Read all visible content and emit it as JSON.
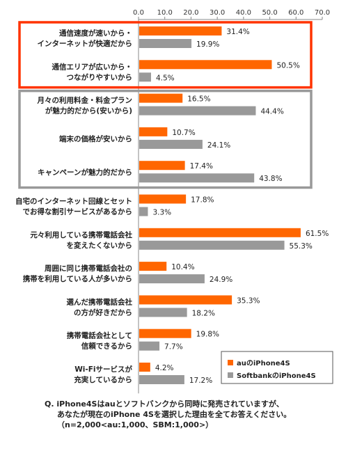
{
  "chart_data": {
    "type": "bar",
    "orientation": "horizontal",
    "xlim": [
      0,
      70
    ],
    "ticks": [
      "0.0",
      "10.0",
      "20.0",
      "30.0",
      "40.0",
      "50.0",
      "60.0",
      "70.0"
    ],
    "categories": [
      [
        "通信速度が速いから・",
        "インターネットが快適だから"
      ],
      [
        "通信エリアが広いから・",
        "つながりやすいから"
      ],
      [
        "月々の利用料金・料金プラン",
        "が魅力的だから(安いから)"
      ],
      [
        "端末の価格が安いから"
      ],
      [
        "キャンペーンが魅力的だから"
      ],
      [
        "自宅のインターネット回線とセット",
        "でお得な割引サービスがあるから"
      ],
      [
        "元々利用している携帯電話会社",
        "を変えたくないから"
      ],
      [
        "周囲に同じ携帯電話会社の",
        "携帯を利用している人が多いから"
      ],
      [
        "選んだ携帯電話会社",
        "の方が好きだから"
      ],
      [
        "携帯電話会社として",
        "信頼できるから"
      ],
      [
        "Wi-Fiサービスが",
        "充実しているから"
      ]
    ],
    "series": [
      {
        "name": "auのiPhone4S",
        "color": "#ff6600",
        "values": [
          31.4,
          50.5,
          16.5,
          10.7,
          17.4,
          17.8,
          61.5,
          10.4,
          35.3,
          19.8,
          4.2
        ],
        "labels": [
          "31.4%",
          "50.5%",
          "16.5%",
          "10.7%",
          "17.4%",
          "17.8%",
          "61.5%",
          "10.4%",
          "35.3%",
          "19.8%",
          "4.2%"
        ]
      },
      {
        "name": "SoftbankのiPhone4S",
        "color": "#999999",
        "values": [
          19.9,
          4.5,
          44.4,
          24.1,
          43.8,
          3.3,
          55.3,
          24.9,
          18.2,
          7.7,
          17.2
        ],
        "labels": [
          "19.9%",
          "4.5%",
          "44.4%",
          "24.1%",
          "43.8%",
          "3.3%",
          "55.3%",
          "24.9%",
          "18.2%",
          "7.7%",
          "17.2%"
        ]
      }
    ],
    "legend_position": "bottom-right",
    "highlight_groups": [
      {
        "color": "#ff3300",
        "categories": [
          0,
          1
        ]
      },
      {
        "color": "#999999",
        "categories": [
          2,
          3,
          4
        ]
      }
    ]
  },
  "note": {
    "lines": [
      "Q.  iPhone4Sはauとソフトバンクから同時に発売されていますが、",
      "あなたが現在のiPhone 4Sを選択した理由を全てお答えください。",
      "（n=2,000<au:1,000、SBM:1,000>）"
    ]
  }
}
